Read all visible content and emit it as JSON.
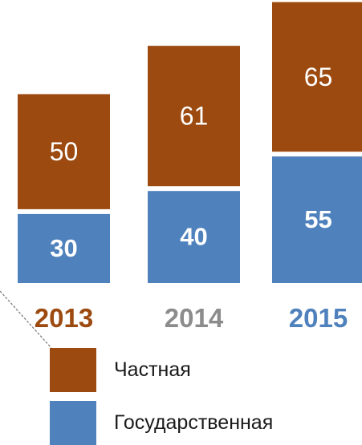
{
  "chart_data": {
    "type": "bar",
    "stacked": true,
    "categories": [
      "2013",
      "2014",
      "2015"
    ],
    "category_label_colors": [
      "#9C4A0F",
      "#8C8C8C",
      "#4F81BD"
    ],
    "series": [
      {
        "name": "Государственная",
        "values": [
          30,
          40,
          55
        ],
        "color": "#4F81BD"
      },
      {
        "name": "Частная",
        "values": [
          50,
          61,
          65
        ],
        "color": "#9C4A0F"
      }
    ],
    "title": "",
    "xlabel": "",
    "ylabel": "",
    "grid": false,
    "legend_position": "bottom",
    "legend_order": [
      "Частная",
      "Государственная"
    ]
  },
  "colors": {
    "private": "#9C4A0F",
    "public": "#4F81BD",
    "connector_line": "#7F7F7F"
  },
  "legend": {
    "private_label": "Частная",
    "public_label": "Государственная"
  }
}
